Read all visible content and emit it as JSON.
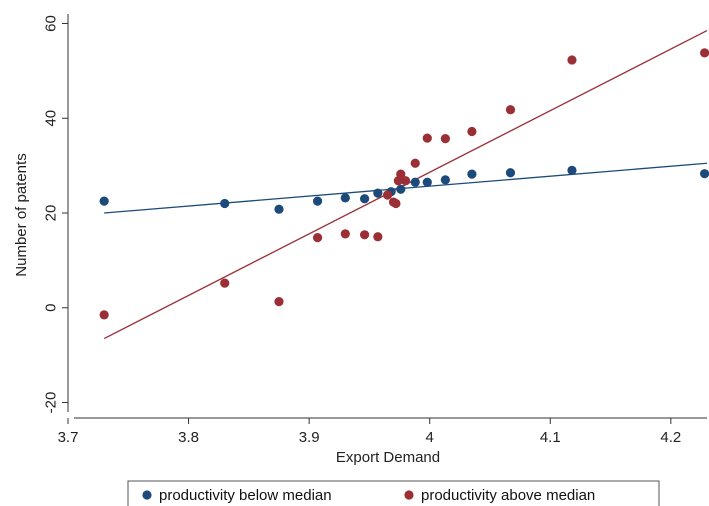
{
  "chart_data": {
    "type": "scatter",
    "xlabel": "Export Demand",
    "ylabel": "Number of patents",
    "xlim": [
      3.7,
      4.23
    ],
    "ylim": [
      -22,
      62
    ],
    "xticks": [
      3.7,
      3.8,
      3.9,
      4.0,
      4.1,
      4.2
    ],
    "xtick_labels": [
      "3.7",
      "3.8",
      "3.9",
      "4",
      "4.1",
      "4.2"
    ],
    "yticks": [
      -20,
      0,
      20,
      40,
      60
    ],
    "ytick_labels": [
      "-20",
      "0",
      "20",
      "40",
      "60"
    ],
    "grid": false,
    "legend": "bottom",
    "series": [
      {
        "name": "productivity below median",
        "color": "#1c4a7a",
        "x": [
          3.73,
          3.83,
          3.875,
          3.907,
          3.93,
          3.946,
          3.957,
          3.968,
          3.976,
          3.988,
          3.998,
          4.013,
          4.035,
          4.067,
          4.118,
          4.228
        ],
        "y": [
          22.5,
          22.0,
          20.8,
          22.5,
          23.2,
          23.0,
          24.2,
          24.5,
          25.0,
          26.5,
          26.5,
          27.0,
          28.2,
          28.5,
          29.0,
          28.3
        ],
        "fit": {
          "x": [
            3.73,
            4.23
          ],
          "y": [
            20.0,
            30.5
          ]
        }
      },
      {
        "name": "productivity above median",
        "color": "#9b2f36",
        "x": [
          3.73,
          3.83,
          3.875,
          3.907,
          3.93,
          3.946,
          3.957,
          3.965,
          3.97,
          3.972,
          3.974,
          3.976,
          3.98,
          3.988,
          3.998,
          4.013,
          4.035,
          4.067,
          4.118,
          4.228
        ],
        "y": [
          -1.5,
          5.2,
          1.3,
          14.8,
          15.6,
          15.4,
          15.0,
          23.8,
          22.3,
          22.0,
          26.8,
          28.2,
          26.8,
          30.5,
          35.8,
          35.7,
          37.2,
          41.8,
          52.3,
          53.8
        ],
        "fit": {
          "x": [
            3.73,
            4.23
          ],
          "y": [
            -6.5,
            58.5
          ]
        }
      }
    ]
  }
}
